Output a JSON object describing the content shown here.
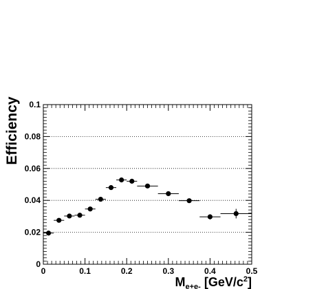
{
  "chart_data": {
    "type": "scatter",
    "title": "",
    "xlabel_main": "M",
    "xlabel_sub": "e+e-",
    "xlabel_unit": " [GeV/c",
    "xlabel_exp": "2",
    "xlabel_close": "]",
    "ylabel": "Efficiency",
    "xlim": [
      0,
      0.5
    ],
    "ylim": [
      0,
      0.1
    ],
    "x_ticks": [
      "0",
      "0.1",
      "0.2",
      "0.3",
      "0.4",
      "0.5"
    ],
    "y_ticks": [
      "0",
      "0.02",
      "0.04",
      "0.06",
      "0.08",
      "0.1"
    ],
    "grid": "horizontal-dotted",
    "points": [
      {
        "x": 0.0125,
        "y": 0.0195,
        "xerr": 0.0125,
        "yerr": 0.0005
      },
      {
        "x": 0.0375,
        "y": 0.0275,
        "xerr": 0.0125,
        "yerr": 0.0005
      },
      {
        "x": 0.0625,
        "y": 0.0302,
        "xerr": 0.0125,
        "yerr": 0.0005
      },
      {
        "x": 0.0875,
        "y": 0.0307,
        "xerr": 0.0125,
        "yerr": 0.0005
      },
      {
        "x": 0.1125,
        "y": 0.0346,
        "xerr": 0.0125,
        "yerr": 0.0005
      },
      {
        "x": 0.1375,
        "y": 0.0407,
        "xerr": 0.0125,
        "yerr": 0.0005
      },
      {
        "x": 0.1625,
        "y": 0.048,
        "xerr": 0.0125,
        "yerr": 0.0005
      },
      {
        "x": 0.1875,
        "y": 0.0528,
        "xerr": 0.0125,
        "yerr": 0.0005
      },
      {
        "x": 0.2125,
        "y": 0.052,
        "xerr": 0.0125,
        "yerr": 0.0005
      },
      {
        "x": 0.25,
        "y": 0.049,
        "xerr": 0.025,
        "yerr": 0.0006
      },
      {
        "x": 0.3,
        "y": 0.0442,
        "xerr": 0.025,
        "yerr": 0.0007
      },
      {
        "x": 0.35,
        "y": 0.0398,
        "xerr": 0.025,
        "yerr": 0.001
      },
      {
        "x": 0.4,
        "y": 0.0297,
        "xerr": 0.025,
        "yerr": 0.0016
      },
      {
        "x": 0.4625,
        "y": 0.0317,
        "xerr": 0.0375,
        "yerr": 0.003
      }
    ]
  }
}
